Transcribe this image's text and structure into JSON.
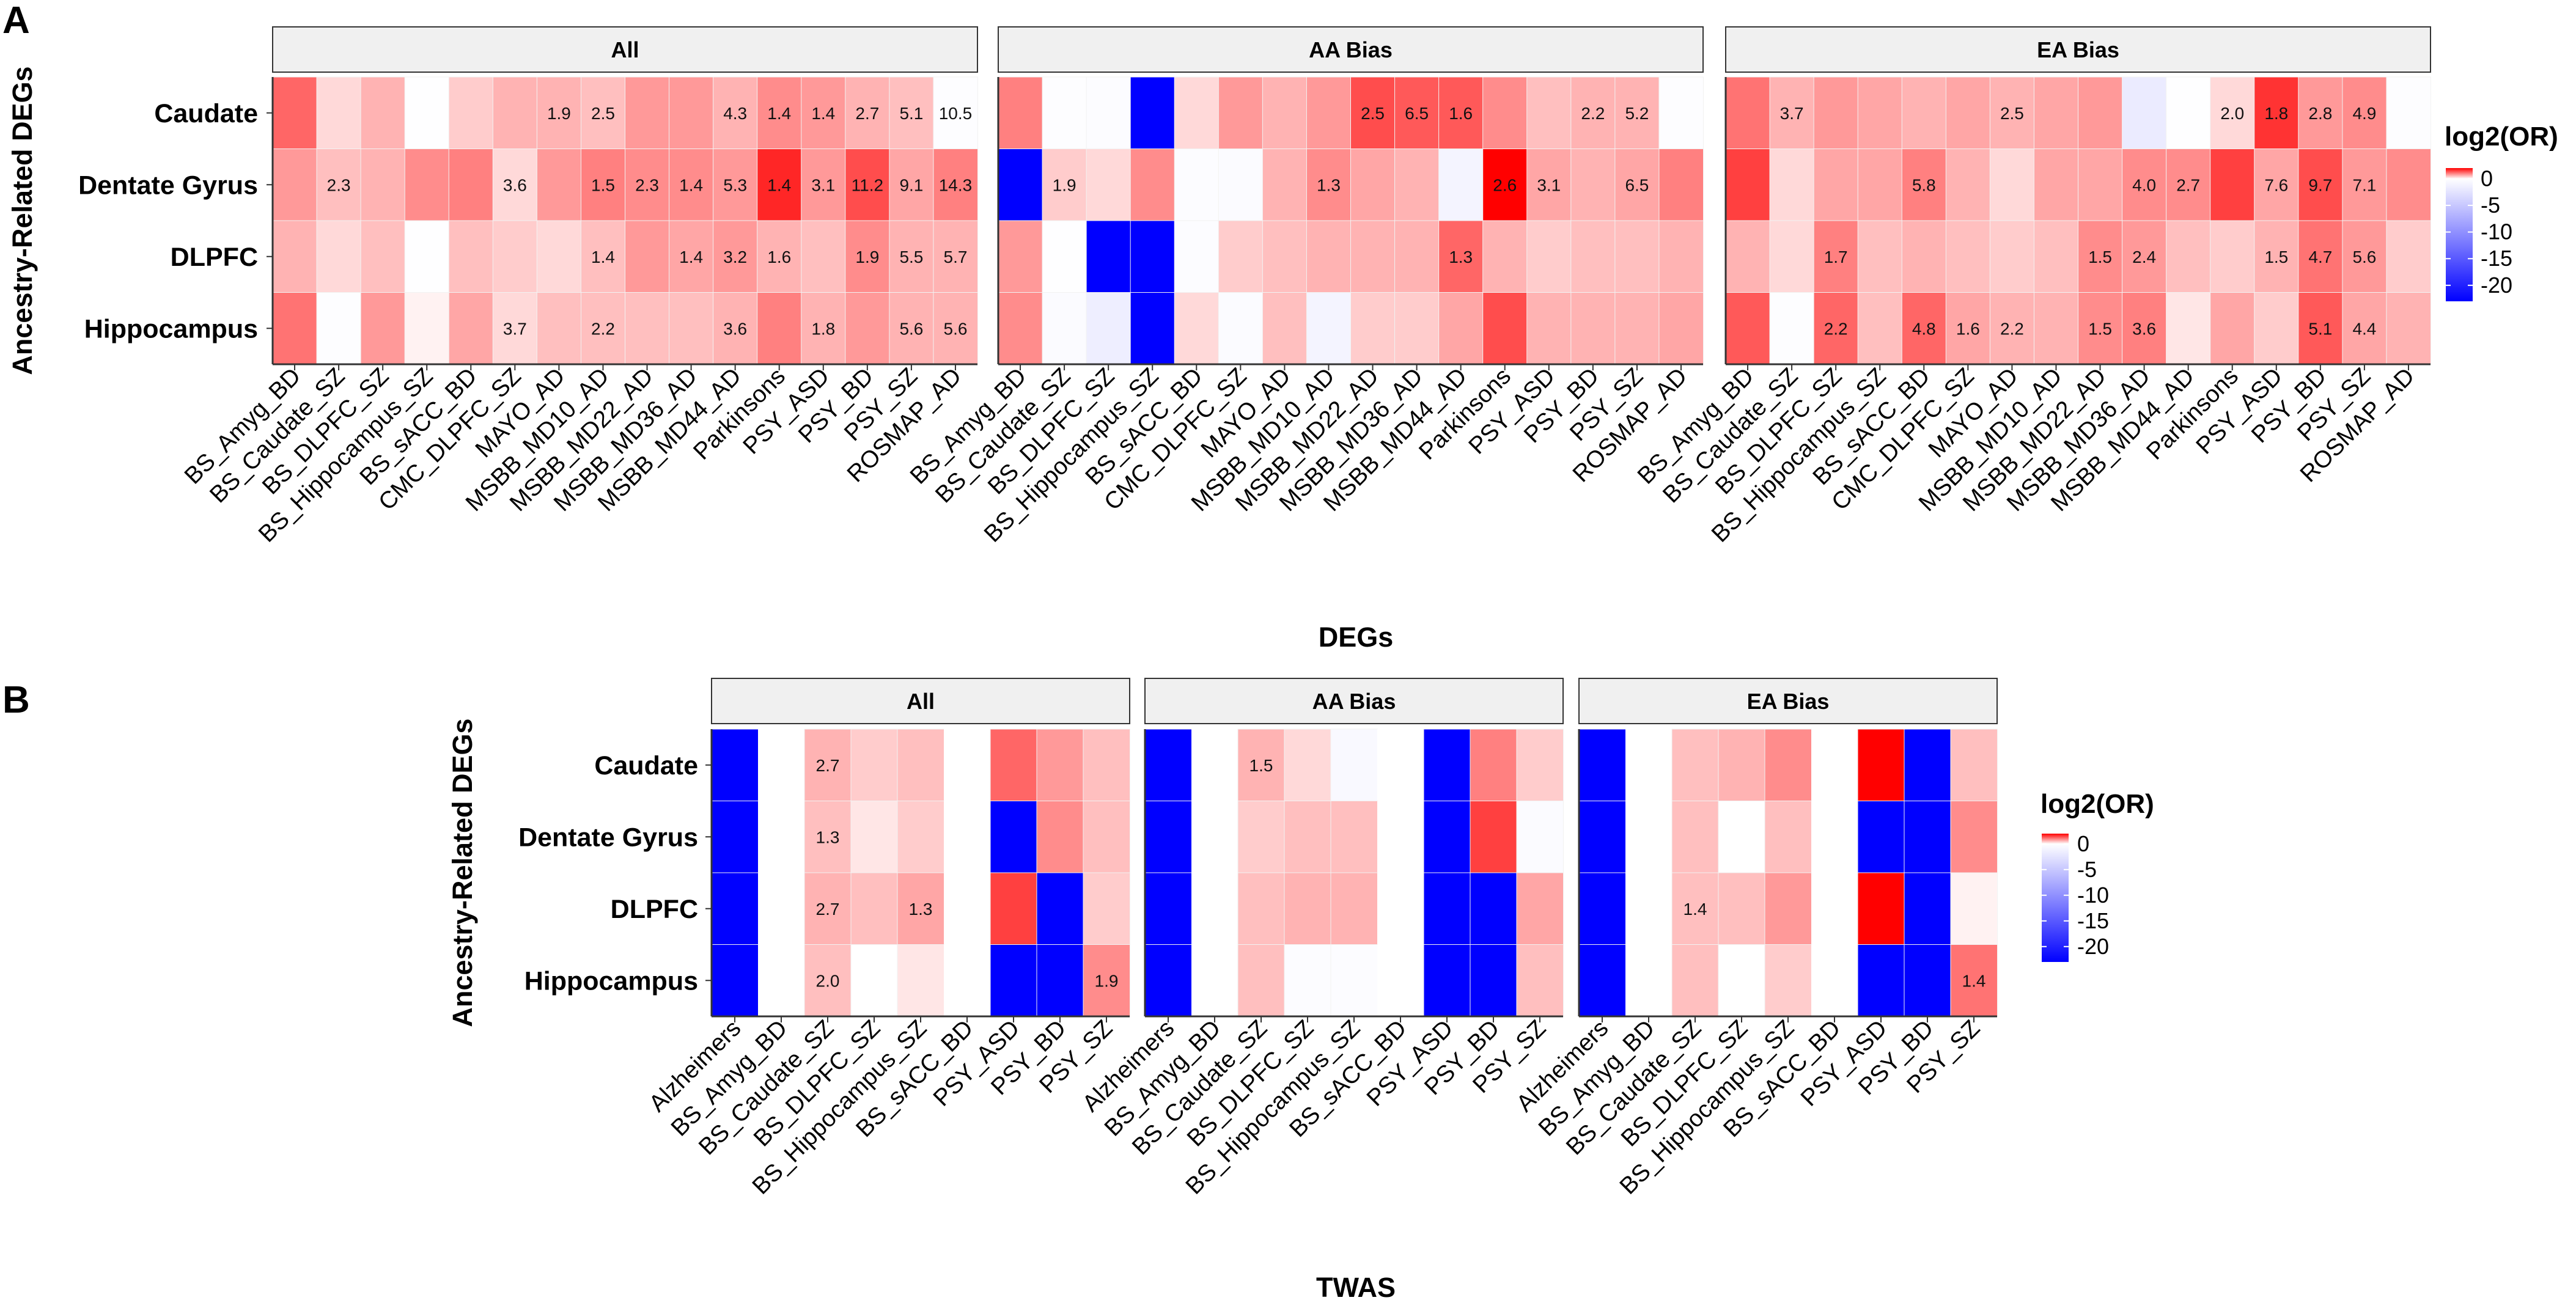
{
  "colors": {
    "low": "#0000ff",
    "mid": "#ffffff",
    "high": "#ff0000",
    "strip_fill": "#f0f0f0",
    "strip_border": "#333333",
    "grid": "#ebebeb"
  },
  "chart_data": [
    {
      "type": "heatmap",
      "panel_tag": "A",
      "xlabel": "DEGs",
      "ylabel": "Ancestry-Related DEGs",
      "legend": {
        "title": "log2(OR)",
        "ticks": [
          "0",
          "-5",
          "-10",
          "-15",
          "-20"
        ],
        "range": [
          -23,
          2
        ]
      },
      "rows": [
        "Caudate",
        "Dentate Gyrus",
        "DLPFC",
        "Hippocampus"
      ],
      "columns": [
        "BS_Amyg_BD",
        "BS_Caudate_SZ",
        "BS_DLPFC_SZ",
        "BS_Hippocampus_SZ",
        "BS_sACC_BD",
        "CMC_DLPFC_SZ",
        "MAYO_AD",
        "MSBB_MD10_AD",
        "MSBB_MD22_AD",
        "MSBB_MD36_AD",
        "MSBB_MD44_AD",
        "Parkinsons",
        "PSY_ASD",
        "PSY_BD",
        "PSY_SZ",
        "ROSMAP_AD"
      ],
      "facets": [
        {
          "name": "All",
          "values": [
            [
              1.2,
              0.3,
              0.6,
              -0.05,
              0.4,
              0.6,
              0.6,
              0.5,
              0.8,
              0.8,
              0.6,
              0.9,
              0.8,
              0.6,
              0.5,
              -0.2
            ],
            [
              0.8,
              0.5,
              0.6,
              0.9,
              1.0,
              0.3,
              0.8,
              1.0,
              0.9,
              0.9,
              0.8,
              1.7,
              0.8,
              1.4,
              0.7,
              1.0
            ],
            [
              0.6,
              0.3,
              0.5,
              -0.05,
              0.5,
              0.4,
              0.3,
              0.5,
              0.8,
              0.7,
              0.8,
              0.6,
              0.5,
              0.9,
              0.6,
              0.6
            ],
            [
              1.1,
              -0.2,
              0.8,
              0.1,
              0.7,
              0.3,
              0.5,
              0.5,
              0.5,
              0.5,
              0.6,
              1.0,
              0.6,
              0.8,
              0.6,
              0.6
            ]
          ],
          "labels": [
            [
              "",
              "",
              "",
              "",
              "",
              "",
              "1.9",
              "2.5",
              "",
              "",
              "4.3",
              "1.4",
              "1.4",
              "2.7",
              "5.1",
              "10.5"
            ],
            [
              "",
              "2.3",
              "",
              "",
              "",
              "3.6",
              "",
              "1.5",
              "2.3",
              "1.4",
              "5.3",
              "1.4",
              "3.1",
              "11.2",
              "9.1",
              "14.3"
            ],
            [
              "",
              "",
              "",
              "",
              "",
              "",
              "",
              "1.4",
              "",
              "1.4",
              "3.2",
              "1.6",
              "",
              "1.9",
              "5.5",
              "5.7"
            ],
            [
              "",
              "",
              "",
              "",
              "",
              "3.7",
              "",
              "2.2",
              "",
              "",
              "3.6",
              "",
              "1.8",
              "",
              "5.6",
              "5.6"
            ]
          ]
        },
        {
          "name": "AA Bias",
          "values": [
            [
              1.0,
              -0.2,
              -0.3,
              -23,
              0.3,
              0.8,
              0.6,
              0.8,
              1.4,
              1.3,
              1.3,
              0.9,
              0.5,
              0.6,
              0.6,
              -0.2
            ],
            [
              -23,
              0.4,
              0.3,
              0.9,
              -0.3,
              -0.4,
              0.6,
              0.9,
              0.7,
              0.6,
              -1.0,
              2.0,
              0.7,
              0.6,
              0.7,
              1.0
            ],
            [
              0.8,
              -0.1,
              -23,
              -23,
              -0.3,
              0.4,
              0.5,
              0.6,
              0.6,
              0.6,
              1.2,
              0.6,
              0.4,
              0.5,
              0.5,
              0.6
            ],
            [
              0.9,
              -0.4,
              -1.5,
              -23,
              0.3,
              -0.4,
              0.5,
              -1.0,
              0.4,
              0.4,
              0.7,
              1.4,
              0.6,
              0.6,
              0.6,
              0.7
            ]
          ],
          "labels": [
            [
              "",
              "",
              "",
              "",
              "",
              "",
              "",
              "",
              "2.5",
              "6.5",
              "1.6",
              "",
              "",
              "2.2",
              "5.2",
              ""
            ],
            [
              "",
              "1.9",
              "",
              "",
              "",
              "",
              "",
              "1.3",
              "",
              "",
              "",
              "2.6",
              "3.1",
              "",
              "6.5",
              ""
            ],
            [
              "",
              "",
              "",
              "",
              "",
              "",
              "",
              "",
              "",
              "",
              "1.3",
              "",
              "",
              "",
              "",
              ""
            ],
            [
              "",
              "",
              "",
              "",
              "",
              "",
              "",
              "",
              "",
              "",
              "",
              "",
              "",
              "",
              "",
              ""
            ]
          ]
        },
        {
          "name": "EA Bias",
          "values": [
            [
              1.1,
              0.6,
              0.8,
              0.7,
              0.6,
              0.7,
              0.6,
              0.7,
              0.8,
              -1.8,
              -0.1,
              0.3,
              1.6,
              0.8,
              0.9,
              -0.2
            ],
            [
              1.5,
              0.3,
              0.7,
              0.7,
              1.0,
              0.6,
              0.3,
              0.7,
              0.7,
              0.9,
              0.9,
              1.5,
              0.7,
              1.4,
              0.8,
              0.9
            ],
            [
              0.6,
              0.3,
              1.0,
              0.5,
              0.6,
              0.5,
              0.4,
              0.5,
              0.9,
              0.8,
              0.5,
              0.4,
              0.6,
              1.1,
              0.8,
              0.4
            ],
            [
              1.3,
              -0.2,
              1.2,
              0.5,
              1.2,
              0.7,
              0.6,
              0.6,
              0.9,
              1.0,
              0.2,
              0.7,
              0.4,
              1.3,
              0.7,
              0.6
            ]
          ],
          "labels": [
            [
              "",
              "3.7",
              "",
              "",
              "",
              "",
              "2.5",
              "",
              "",
              "",
              "",
              "2.0",
              "1.8",
              "2.8",
              "4.9",
              ""
            ],
            [
              "",
              "",
              "",
              "",
              "5.8",
              "",
              "",
              "",
              "",
              "4.0",
              "2.7",
              "",
              "7.6",
              "9.7",
              "7.1",
              ""
            ],
            [
              "",
              "",
              "1.7",
              "",
              "",
              "",
              "",
              "",
              "1.5",
              "2.4",
              "",
              "",
              "1.5",
              "4.7",
              "5.6",
              ""
            ],
            [
              "",
              "",
              "2.2",
              "",
              "4.8",
              "1.6",
              "2.2",
              "",
              "1.5",
              "3.6",
              "",
              "",
              "",
              "5.1",
              "4.4",
              ""
            ]
          ]
        }
      ]
    },
    {
      "type": "heatmap",
      "panel_tag": "B",
      "xlabel": "TWAS",
      "ylabel": "Ancestry-Related DEGs",
      "legend": {
        "title": "log2(OR)",
        "ticks": [
          "0",
          "-5",
          "-10",
          "-15",
          "-20"
        ],
        "range": [
          -23,
          2
        ]
      },
      "rows": [
        "Caudate",
        "Dentate Gyrus",
        "DLPFC",
        "Hippocampus"
      ],
      "columns": [
        "Alzheimers",
        "BS_Amyg_BD",
        "BS_Caudate_SZ",
        "BS_DLPFC_SZ",
        "BS_Hippocampus_SZ",
        "BS_sACC_BD",
        "PSY_ASD",
        "PSY_BD",
        "PSY_SZ"
      ],
      "facets": [
        {
          "name": "All",
          "values": [
            [
              -23,
              null,
              0.6,
              0.4,
              0.5,
              null,
              1.2,
              0.8,
              0.5
            ],
            [
              -23,
              null,
              0.5,
              0.2,
              0.4,
              null,
              -23,
              0.9,
              0.5
            ],
            [
              -23,
              null,
              0.6,
              0.5,
              0.7,
              null,
              1.5,
              -23,
              0.4
            ],
            [
              -23,
              null,
              0.5,
              0.0,
              0.2,
              null,
              -23,
              -23,
              0.9
            ]
          ],
          "labels": [
            [
              "",
              "",
              "2.7",
              "",
              "",
              "",
              "",
              "",
              ""
            ],
            [
              "",
              "",
              "1.3",
              "",
              "",
              "",
              "",
              "",
              ""
            ],
            [
              "",
              "",
              "2.7",
              "",
              "1.3",
              "",
              "",
              "",
              ""
            ],
            [
              "",
              "",
              "2.0",
              "",
              "",
              "",
              "",
              "",
              "1.9"
            ]
          ]
        },
        {
          "name": "AA Bias",
          "values": [
            [
              -23,
              null,
              0.6,
              0.3,
              -0.5,
              null,
              -23,
              1.0,
              0.4
            ],
            [
              -23,
              null,
              0.4,
              0.5,
              0.5,
              null,
              -23,
              1.5,
              -0.4
            ],
            [
              -23,
              null,
              0.5,
              0.6,
              0.6,
              null,
              -23,
              -23,
              0.7
            ],
            [
              -23,
              null,
              0.5,
              -0.3,
              -0.3,
              null,
              -23,
              -23,
              0.5
            ]
          ],
          "labels": [
            [
              "",
              "",
              "1.5",
              "",
              "",
              "",
              "",
              "",
              ""
            ],
            [
              "",
              "",
              "",
              "",
              "",
              "",
              "",
              "",
              ""
            ],
            [
              "",
              "",
              "",
              "",
              "",
              "",
              "",
              "",
              ""
            ],
            [
              "",
              "",
              "",
              "",
              "",
              "",
              "",
              "",
              ""
            ]
          ]
        },
        {
          "name": "EA Bias",
          "values": [
            [
              -23,
              null,
              0.5,
              0.6,
              0.9,
              null,
              2.0,
              -23,
              0.5
            ],
            [
              -23,
              null,
              0.5,
              0.0,
              0.5,
              null,
              -23,
              -23,
              0.9
            ],
            [
              -23,
              null,
              0.5,
              0.5,
              0.8,
              null,
              2.0,
              -23,
              0.1
            ],
            [
              -23,
              null,
              0.5,
              0.0,
              0.4,
              null,
              -23,
              -23,
              1.1
            ]
          ],
          "labels": [
            [
              "",
              "",
              "",
              "",
              "",
              "",
              "",
              "",
              ""
            ],
            [
              "",
              "",
              "",
              "",
              "",
              "",
              "",
              "",
              ""
            ],
            [
              "",
              "",
              "1.4",
              "",
              "",
              "",
              "",
              "",
              ""
            ],
            [
              "",
              "",
              "",
              "",
              "",
              "",
              "",
              "",
              "1.4"
            ]
          ]
        }
      ]
    }
  ]
}
